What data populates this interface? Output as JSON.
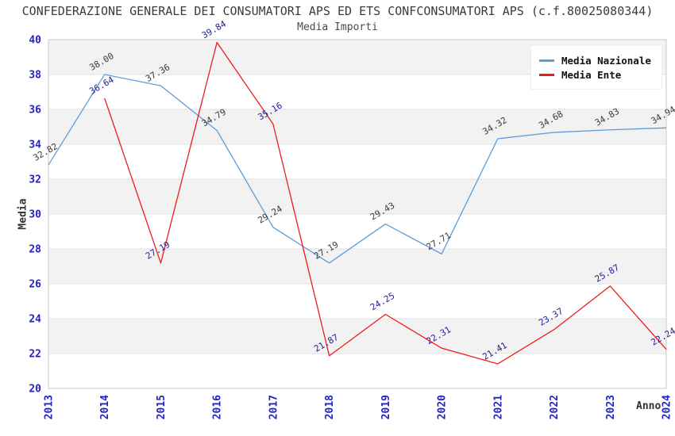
{
  "chart_data": {
    "type": "line",
    "title": "CONFEDERAZIONE GENERALE DEI CONSUMATORI APS ED ETS CONFCONSUMATORI APS (c.f.80025080344)",
    "subtitle": "Media Importi",
    "xlabel": "Anno",
    "ylabel": "Media",
    "categories": [
      "2013",
      "2014",
      "2015",
      "2016",
      "2017",
      "2018",
      "2019",
      "2020",
      "2021",
      "2022",
      "2023",
      "2024"
    ],
    "series": [
      {
        "name": "Media Nazionale",
        "color": "#5e9cd9",
        "label_color": "#3a3a3a",
        "values": [
          32.82,
          38.0,
          37.36,
          34.79,
          29.24,
          27.19,
          29.43,
          27.71,
          34.32,
          34.68,
          34.83,
          34.94
        ]
      },
      {
        "name": "Media Ente",
        "color": "#ed1c1c",
        "label_color": "#22229b",
        "values": [
          null,
          36.64,
          27.19,
          39.84,
          35.16,
          21.87,
          24.25,
          22.31,
          21.41,
          23.37,
          25.87,
          22.24
        ]
      }
    ],
    "ylim": [
      20,
      40
    ],
    "ytick_step": 2,
    "grid": true,
    "legend_position": "top-right",
    "band_colors": [
      "#ffffff",
      "#f2f2f2"
    ],
    "gridline_color": "#e2e2e2",
    "frame_color": "#c9c9c9",
    "tick_label_color": "#2222cc"
  }
}
